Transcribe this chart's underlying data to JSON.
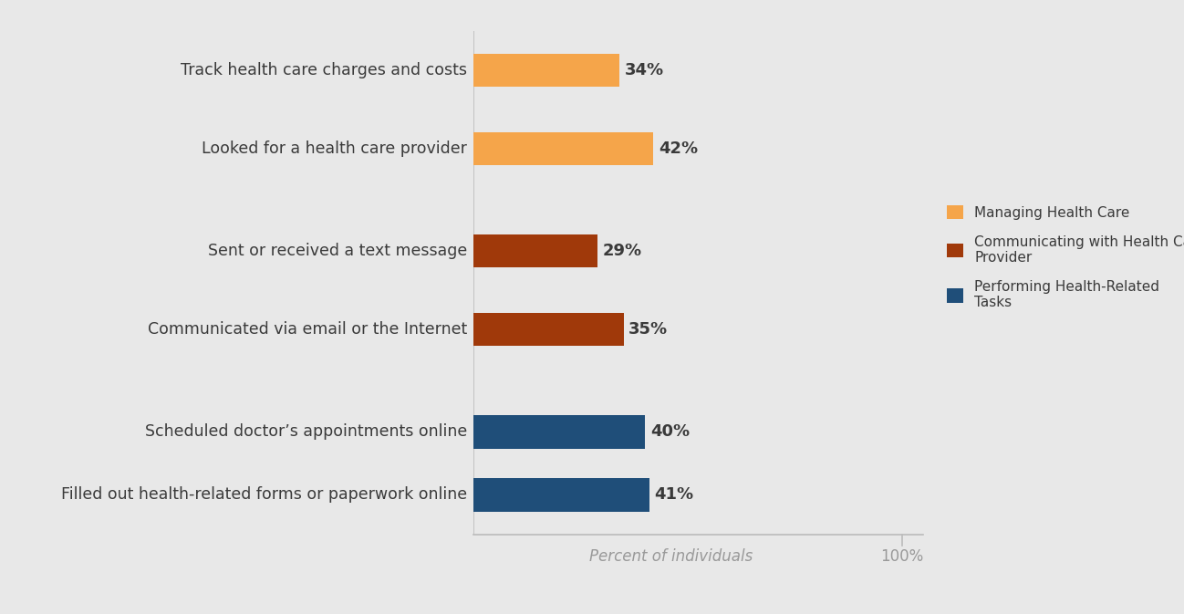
{
  "categories": [
    "Track health care charges and costs",
    "Looked for a health care provider",
    "Sent or received a text message",
    "Communicated via email or the Internet",
    "Scheduled doctor’s appointments online",
    "Filled out health-related forms or paperwork online"
  ],
  "values": [
    34,
    42,
    29,
    35,
    40,
    41
  ],
  "colors": [
    "#F5A54A",
    "#F5A54A",
    "#A0390A",
    "#A0390A",
    "#1F4E79",
    "#1F4E79"
  ],
  "legend_labels": [
    "Managing Health Care",
    "Communicating with Health Care\nProvider",
    "Performing Health-Related\nTasks"
  ],
  "legend_colors": [
    "#F5A54A",
    "#A0390A",
    "#1F4E79"
  ],
  "xlabel": "Percent of individuals",
  "x100_label": "100%",
  "xlim_max": 105,
  "background_color": "#E8E8E8",
  "bar_height": 0.42,
  "label_fontsize": 12.5,
  "value_fontsize": 13,
  "xlabel_fontsize": 12,
  "legend_fontsize": 11,
  "text_color": "#3A3A3A",
  "axis_color": "#BBBBBB",
  "y_positions": [
    5.4,
    4.4,
    3.1,
    2.1,
    0.8,
    0.0
  ]
}
